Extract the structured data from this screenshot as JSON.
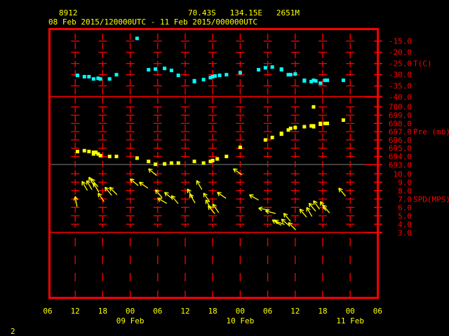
{
  "header": {
    "station": "8912",
    "location": "70.43S   134.15E   2651M",
    "period": "08 Feb 2015/120000UTC - 11 Feb 2015/000000UTC"
  },
  "footer": {
    "page_number": "2"
  },
  "colors": {
    "frame": "#ff0000",
    "temperature": "#00ffff",
    "pressure": "#ffff00",
    "wind": "#ffff00",
    "text": "#ffff00",
    "axis_text": "#ff0000",
    "separator": "#808080"
  },
  "chart_data": [
    {
      "type": "scatter",
      "panel": "temperature",
      "ylabel": "T(C)",
      "yticks": [
        "-15.0",
        "-20.0",
        "-25.0",
        "-30.0",
        "-35.0",
        "-40.0"
      ],
      "ylim": [
        -40,
        -12
      ],
      "points": [
        [
          "2015-02-08T12:30",
          -30.3
        ],
        [
          "2015-02-08T14:00",
          -30.9
        ],
        [
          "2015-02-08T15:00",
          -30.9
        ],
        [
          "2015-02-08T16:00",
          -31.9
        ],
        [
          "2015-02-08T17:00",
          -31.6
        ],
        [
          "2015-02-08T17:30",
          -31.9
        ],
        [
          "2015-02-08T19:30",
          -31.9
        ],
        [
          "2015-02-08T21:00",
          -30.0
        ],
        [
          "2015-02-09T01:30",
          -13.8
        ],
        [
          "2015-02-09T04:00",
          -27.8
        ],
        [
          "2015-02-09T05:30",
          -27.5
        ],
        [
          "2015-02-09T07:30",
          -27.2
        ],
        [
          "2015-02-09T09:00",
          -28.1
        ],
        [
          "2015-02-09T10:30",
          -30.3
        ],
        [
          "2015-02-09T14:00",
          -33.1
        ],
        [
          "2015-02-09T14:00",
          -32.7
        ],
        [
          "2015-02-09T16:00",
          -32.2
        ],
        [
          "2015-02-09T17:30",
          -31.3
        ],
        [
          "2015-02-09T18:00",
          -30.9
        ],
        [
          "2015-02-09T18:30",
          -30.6
        ],
        [
          "2015-02-09T19:30",
          -30.3
        ],
        [
          "2015-02-09T21:00",
          -30.0
        ],
        [
          "2015-02-10T00:00",
          -29.1
        ],
        [
          "2015-02-10T04:00",
          -27.8
        ],
        [
          "2015-02-10T05:30",
          -26.9
        ],
        [
          "2015-02-10T07:00",
          -26.6
        ],
        [
          "2015-02-10T09:00",
          -27.5
        ],
        [
          "2015-02-10T09:00",
          -27.8
        ],
        [
          "2015-02-10T10:30",
          -30.0
        ],
        [
          "2015-02-10T11:00",
          -30.0
        ],
        [
          "2015-02-10T12:00",
          -29.7
        ],
        [
          "2015-02-10T14:00",
          -32.5
        ],
        [
          "2015-02-10T14:00",
          -32.8
        ],
        [
          "2015-02-10T15:30",
          -33.1
        ],
        [
          "2015-02-10T16:00",
          -32.5
        ],
        [
          "2015-02-10T16:30",
          -32.8
        ],
        [
          "2015-02-10T17:30",
          -33.8
        ],
        [
          "2015-02-10T18:30",
          -32.5
        ],
        [
          "2015-02-10T19:00",
          -32.5
        ],
        [
          "2015-02-10T22:30",
          -32.5
        ]
      ]
    },
    {
      "type": "scatter",
      "panel": "pressure",
      "ylabel": "Pre (mb)",
      "yticks": [
        "700.0",
        "699.0",
        "698.0",
        "697.0",
        "696.0",
        "695.0",
        "694.0",
        "693.0"
      ],
      "ylim": [
        693,
        700.8
      ],
      "points": [
        [
          "2015-02-08T12:30",
          694.6
        ],
        [
          "2015-02-08T14:00",
          694.7
        ],
        [
          "2015-02-08T15:00",
          694.6
        ],
        [
          "2015-02-08T16:00",
          694.5
        ],
        [
          "2015-02-08T16:00",
          694.3
        ],
        [
          "2015-02-08T16:30",
          694.5
        ],
        [
          "2015-02-08T17:00",
          694.3
        ],
        [
          "2015-02-08T17:30",
          694.1
        ],
        [
          "2015-02-08T19:30",
          694.0
        ],
        [
          "2015-02-08T21:00",
          694.0
        ],
        [
          "2015-02-09T01:30",
          693.8
        ],
        [
          "2015-02-09T04:00",
          693.4
        ],
        [
          "2015-02-09T05:30",
          693.05
        ],
        [
          "2015-02-09T07:30",
          693.1
        ],
        [
          "2015-02-09T09:00",
          693.2
        ],
        [
          "2015-02-09T10:30",
          693.2
        ],
        [
          "2015-02-09T14:00",
          693.4
        ],
        [
          "2015-02-09T16:00",
          693.2
        ],
        [
          "2015-02-09T17:30",
          693.4
        ],
        [
          "2015-02-09T18:00",
          693.5
        ],
        [
          "2015-02-09T19:00",
          693.7
        ],
        [
          "2015-02-09T21:00",
          694.0
        ],
        [
          "2015-02-10T00:00",
          695.1
        ],
        [
          "2015-02-10T05:30",
          696.0
        ],
        [
          "2015-02-10T07:00",
          696.3
        ],
        [
          "2015-02-10T09:00",
          696.8
        ],
        [
          "2015-02-10T09:00",
          696.7
        ],
        [
          "2015-02-10T10:30",
          697.2
        ],
        [
          "2015-02-10T11:00",
          697.4
        ],
        [
          "2015-02-10T12:00",
          697.5
        ],
        [
          "2015-02-10T14:00",
          697.6
        ],
        [
          "2015-02-10T15:30",
          697.7
        ],
        [
          "2015-02-10T16:00",
          697.6
        ],
        [
          "2015-02-10T16:00",
          697.7
        ],
        [
          "2015-02-10T16:00",
          700.0
        ],
        [
          "2015-02-10T17:30",
          697.9
        ],
        [
          "2015-02-10T17:30",
          698.0
        ],
        [
          "2015-02-10T18:30",
          698.0
        ],
        [
          "2015-02-10T19:00",
          698.0
        ],
        [
          "2015-02-10T22:30",
          698.4
        ]
      ]
    },
    {
      "type": "scatter",
      "panel": "wind",
      "ylabel": "SPD(MPS)",
      "yticks": [
        "10.0",
        "9.0",
        "8.0",
        "7.0",
        "6.0",
        "5.0",
        "4.0",
        "3.0"
      ],
      "ylim": [
        3,
        11
      ],
      "point_format": [
        "time",
        "speed_mps",
        "arrow_direction_deg"
      ],
      "points": [
        [
          "2015-02-08T12:00",
          7.3,
          350
        ],
        [
          "2015-02-08T13:30",
          9.1,
          330
        ],
        [
          "2015-02-08T14:30",
          9.2,
          330
        ],
        [
          "2015-02-08T15:00",
          9.6,
          330
        ],
        [
          "2015-02-08T15:30",
          9.4,
          320
        ],
        [
          "2015-02-08T16:00",
          8.9,
          330
        ],
        [
          "2015-02-08T17:00",
          7.7,
          325
        ],
        [
          "2015-02-08T18:30",
          8.4,
          320
        ],
        [
          "2015-02-08T19:30",
          8.4,
          315
        ],
        [
          "2015-02-09T00:00",
          9.4,
          310
        ],
        [
          "2015-02-09T02:00",
          9.0,
          305
        ],
        [
          "2015-02-09T04:00",
          10.6,
          310
        ],
        [
          "2015-02-09T05:30",
          8.1,
          320
        ],
        [
          "2015-02-09T06:00",
          7.1,
          300
        ],
        [
          "2015-02-09T07:30",
          7.8,
          310
        ],
        [
          "2015-02-09T09:00",
          7.4,
          320
        ],
        [
          "2015-02-09T12:30",
          8.2,
          330
        ],
        [
          "2015-02-09T13:00",
          7.6,
          330
        ],
        [
          "2015-02-09T14:30",
          9.2,
          330
        ],
        [
          "2015-02-09T16:00",
          7.7,
          325
        ],
        [
          "2015-02-09T16:30",
          6.9,
          330
        ],
        [
          "2015-02-09T17:00",
          6.2,
          320
        ],
        [
          "2015-02-09T18:00",
          6.4,
          325
        ],
        [
          "2015-02-09T19:00",
          7.8,
          305
        ],
        [
          "2015-02-09T22:30",
          10.6,
          305
        ],
        [
          "2015-02-10T02:00",
          7.5,
          300
        ],
        [
          "2015-02-10T04:00",
          5.9,
          280
        ],
        [
          "2015-02-10T05:30",
          5.6,
          285
        ],
        [
          "2015-02-10T07:00",
          4.5,
          300
        ],
        [
          "2015-02-10T07:30",
          4.4,
          290
        ],
        [
          "2015-02-10T09:00",
          4.6,
          310
        ],
        [
          "2015-02-10T09:30",
          5.3,
          320
        ],
        [
          "2015-02-10T10:30",
          4.2,
          315
        ],
        [
          "2015-02-10T13:00",
          5.8,
          320
        ],
        [
          "2015-02-10T14:30",
          6.0,
          330
        ],
        [
          "2015-02-10T15:00",
          6.5,
          320
        ],
        [
          "2015-02-10T16:00",
          6.8,
          325
        ],
        [
          "2015-02-10T17:30",
          6.7,
          330
        ],
        [
          "2015-02-10T18:00",
          6.3,
          320
        ],
        [
          "2015-02-10T21:30",
          8.3,
          320
        ]
      ]
    }
  ],
  "x_axis": {
    "range": [
      "2015-02-08T06:00",
      "2015-02-11T06:00"
    ],
    "tick_labels": [
      "06",
      "12",
      "18",
      "00",
      "06",
      "12",
      "18",
      "00",
      "06",
      "12",
      "18",
      "00",
      "06"
    ],
    "date_labels": [
      {
        "label": "09 Feb",
        "at": "2015-02-09T00:00"
      },
      {
        "label": "10 Feb",
        "at": "2015-02-10T00:00"
      },
      {
        "label": "11 Feb",
        "at": "2015-02-11T00:00"
      }
    ]
  }
}
